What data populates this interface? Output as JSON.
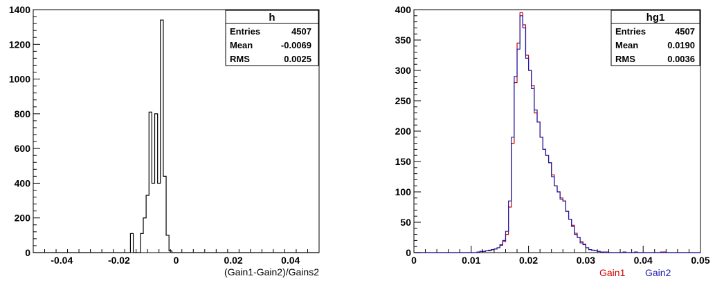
{
  "chart_data": [
    {
      "type": "histogram",
      "title": "h",
      "xlabel": "(Gain1-Gain2)/Gains2",
      "ylabel": "",
      "xlim": [
        -0.05,
        0.05
      ],
      "ylim": [
        0,
        1400
      ],
      "xticks": [
        "-0.04",
        "-0.02",
        "0",
        "0.02",
        "0.04"
      ],
      "xtick_values": [
        -0.04,
        -0.02,
        0,
        0.02,
        0.04
      ],
      "yticks": [
        "0",
        "200",
        "400",
        "600",
        "800",
        "1000",
        "1200",
        "1400"
      ],
      "ytick_values": [
        0,
        200,
        400,
        600,
        800,
        1000,
        1200,
        1400
      ],
      "grid": false,
      "stats": {
        "name": "h",
        "rows": [
          {
            "label": "Entries",
            "value": "4507"
          },
          {
            "label": "Mean",
            "value": "-0.0069"
          },
          {
            "label": "RMS",
            "value": "0.0025"
          }
        ]
      },
      "series": [
        {
          "color": "#000000",
          "bin_edges": [
            -0.05,
            -0.016,
            -0.015,
            -0.0125,
            -0.0115,
            -0.0105,
            -0.0095,
            -0.0085,
            -0.0075,
            -0.0065,
            -0.0055,
            -0.0045,
            -0.0035,
            -0.0025,
            -0.0015,
            0.05
          ],
          "counts": [
            0,
            110,
            0,
            110,
            200,
            330,
            810,
            400,
            800,
            400,
            1340,
            440,
            100,
            10,
            0
          ]
        }
      ]
    },
    {
      "type": "histogram",
      "title": "hg1",
      "xlabel": "",
      "ylabel": "",
      "xlim": [
        0,
        0.05
      ],
      "ylim": [
        0,
        400
      ],
      "xticks": [
        "0",
        "0.01",
        "0.02",
        "0.03",
        "0.04",
        "0.05"
      ],
      "xtick_values": [
        0,
        0.01,
        0.02,
        0.03,
        0.04,
        0.05
      ],
      "yticks": [
        "0",
        "50",
        "100",
        "150",
        "200",
        "250",
        "300",
        "350",
        "400"
      ],
      "ytick_values": [
        0,
        50,
        100,
        150,
        200,
        250,
        300,
        350,
        400
      ],
      "grid": false,
      "legend": {
        "placement": "bottom-right",
        "entries": [
          "Gain1",
          "Gain2"
        ]
      },
      "stats": {
        "name": "hg1",
        "rows": [
          {
            "label": "Entries",
            "value": "4507"
          },
          {
            "label": "Mean",
            "value": "0.0190"
          },
          {
            "label": "RMS",
            "value": "0.0036"
          }
        ]
      },
      "bin_start": 0.0,
      "bin_width": 0.0005,
      "series": [
        {
          "name": "Gain1",
          "color": "#cc0000",
          "counts": [
            0,
            0,
            0,
            0,
            0,
            0,
            0,
            0,
            0,
            0,
            0,
            0,
            0,
            0,
            0,
            0,
            0,
            0,
            0,
            0,
            0,
            0,
            1,
            2,
            2,
            3,
            3,
            5,
            6,
            8,
            12,
            18,
            30,
            75,
            180,
            280,
            345,
            395,
            375,
            325,
            300,
            275,
            230,
            215,
            190,
            170,
            160,
            148,
            128,
            110,
            100,
            90,
            85,
            68,
            55,
            45,
            32,
            25,
            18,
            14,
            8,
            5,
            4,
            3,
            2,
            1,
            1,
            1,
            0,
            0,
            0,
            0,
            0,
            1,
            0,
            0,
            0,
            1,
            0,
            0,
            0,
            0,
            0,
            0,
            0,
            0,
            1,
            0,
            0,
            0,
            0,
            0,
            0,
            0,
            0,
            0,
            0,
            0,
            0,
            0
          ]
        },
        {
          "name": "Gain2",
          "color": "#1a1aaa",
          "counts": [
            0,
            0,
            0,
            0,
            0,
            0,
            0,
            0,
            0,
            0,
            0,
            0,
            0,
            0,
            0,
            0,
            0,
            0,
            0,
            0,
            0,
            0,
            1,
            2,
            2,
            3,
            4,
            5,
            6,
            8,
            13,
            20,
            35,
            85,
            190,
            290,
            335,
            390,
            370,
            320,
            300,
            270,
            235,
            215,
            190,
            170,
            160,
            148,
            125,
            110,
            100,
            88,
            85,
            68,
            55,
            43,
            30,
            25,
            16,
            13,
            8,
            5,
            4,
            3,
            2,
            1,
            1,
            0,
            0,
            0,
            0,
            0,
            0,
            1,
            0,
            0,
            0,
            1,
            0,
            0,
            0,
            0,
            0,
            0,
            0,
            0,
            0,
            1,
            0,
            0,
            0,
            0,
            0,
            0,
            0,
            0,
            0,
            0,
            0,
            0
          ]
        }
      ]
    }
  ]
}
